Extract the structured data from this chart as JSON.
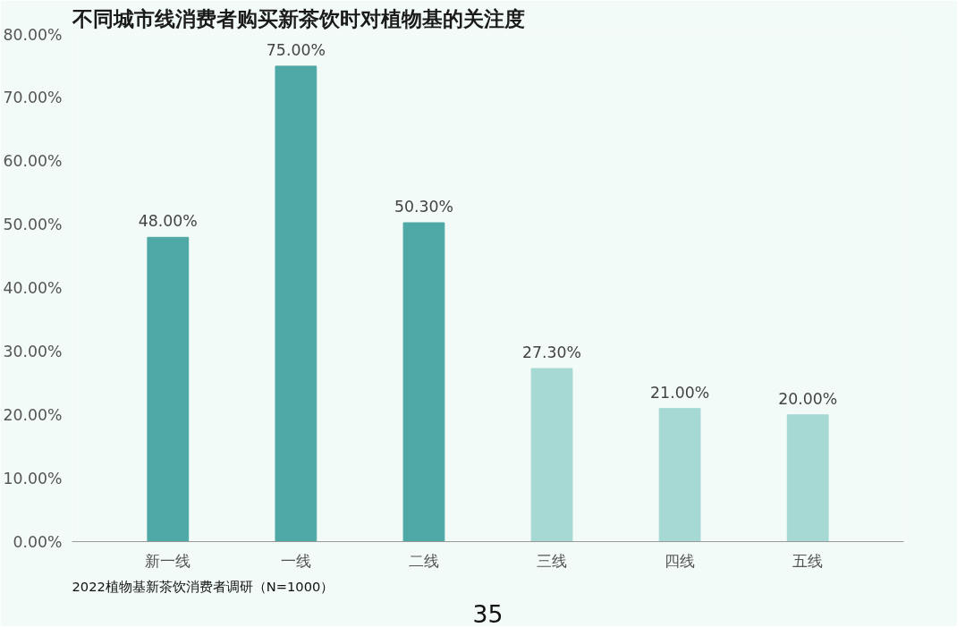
{
  "chart_data": {
    "type": "bar",
    "title": "不同城市线消费者购买新茶饮时对植物基的关注度",
    "categories": [
      "新一线",
      "一线",
      "二线",
      "三线",
      "四线",
      "五线"
    ],
    "values": [
      48,
      75,
      50.3,
      27.3,
      21,
      20
    ],
    "colors": [
      "#4ea8a5",
      "#4ea8a5",
      "#4ea8a5",
      "#a6d8d4",
      "#a6d8d4",
      "#a6d8d4"
    ],
    "value_labels": [
      "48.00%",
      "75.00%",
      "50.30%",
      "27.30%",
      "21.00%",
      "20.00%"
    ],
    "ylim": [
      0,
      80
    ],
    "yticks": [
      {
        "value": 0,
        "label": "0.00%"
      },
      {
        "value": 10,
        "label": "10.00%"
      },
      {
        "value": 20,
        "label": "20.00%"
      },
      {
        "value": 30,
        "label": "30.00%"
      },
      {
        "value": 40,
        "label": "40.00%"
      },
      {
        "value": 50,
        "label": "50.00%"
      },
      {
        "value": 60,
        "label": "60.00%"
      },
      {
        "value": 70,
        "label": "70.00%"
      },
      {
        "value": 80,
        "label": "80.00%"
      }
    ],
    "grid": false,
    "annotations": [
      "2022植物基新茶饮消费者调研（N=1000）",
      "35"
    ]
  }
}
